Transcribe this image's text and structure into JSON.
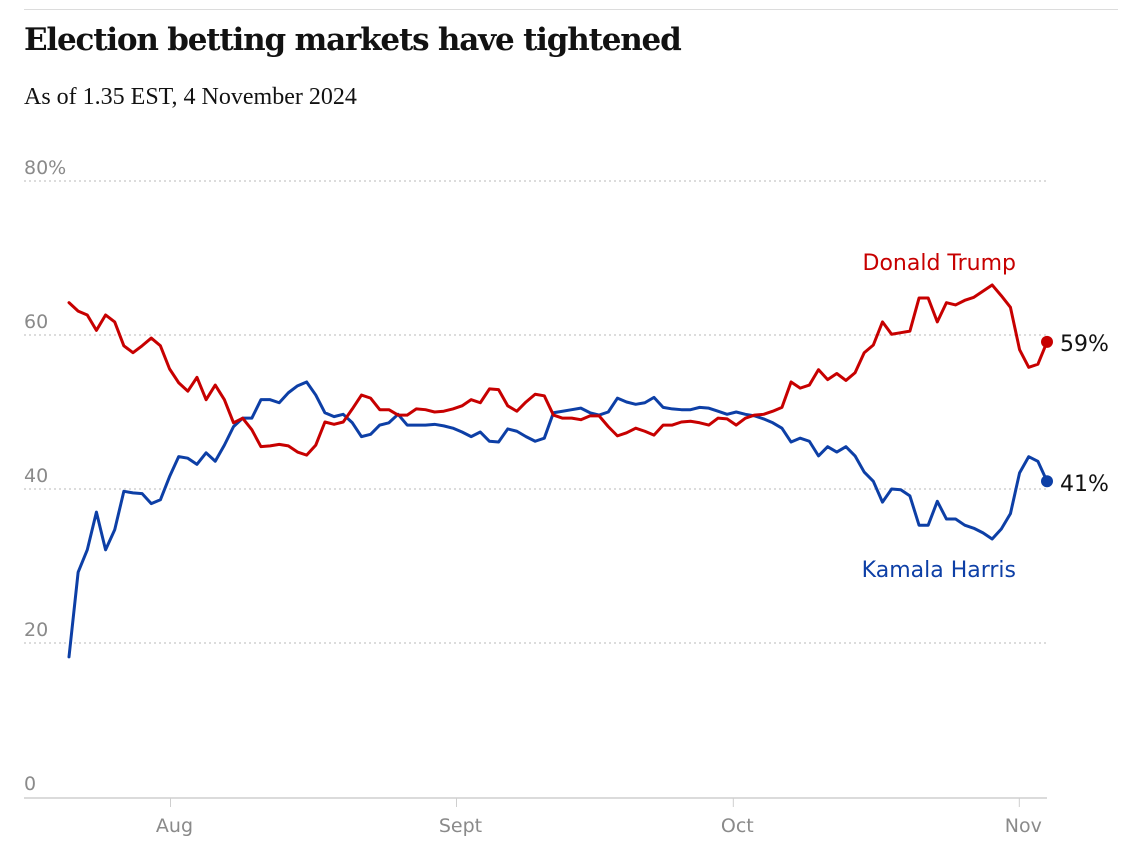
{
  "chart_data": {
    "type": "line",
    "title": "Election betting markets have tightened",
    "subtitle": "As of 1.35 EST, 4 November 2024",
    "xlabel": "",
    "ylabel": "",
    "x_range": [
      "2024-07-21",
      "2024-11-04"
    ],
    "x_ticks": [
      {
        "date": "2024-08-01",
        "label": "Aug"
      },
      {
        "date": "2024-09-01",
        "label": "Sept"
      },
      {
        "date": "2024-10-01",
        "label": "Oct"
      },
      {
        "date": "2024-11-01",
        "label": "Nov"
      }
    ],
    "ylim": [
      0,
      80
    ],
    "y_ticks": [
      {
        "value": 0,
        "label": "0"
      },
      {
        "value": 20,
        "label": "20"
      },
      {
        "value": 40,
        "label": "40"
      },
      {
        "value": 60,
        "label": "60"
      },
      {
        "value": 80,
        "label": "80%"
      }
    ],
    "grid": "horizontal dotted",
    "series": [
      {
        "name": "Donald Trump",
        "color": "#c70000",
        "end_label": "59%",
        "values": [
          64.2,
          63.1,
          62.6,
          60.6,
          62.6,
          61.7,
          58.6,
          57.7,
          58.6,
          59.6,
          58.6,
          55.6,
          53.8,
          52.7,
          54.5,
          51.6,
          53.5,
          51.6,
          48.6,
          49.2,
          47.7,
          45.5,
          45.6,
          45.8,
          45.6,
          44.8,
          44.4,
          45.7,
          48.7,
          48.4,
          48.7,
          50.4,
          52.2,
          51.8,
          50.3,
          50.3,
          49.6,
          49.6,
          50.4,
          50.3,
          50.0,
          50.1,
          50.4,
          50.8,
          51.6,
          51.2,
          53.0,
          52.9,
          50.8,
          50.1,
          51.3,
          52.3,
          52.1,
          49.6,
          49.2,
          49.2,
          49.0,
          49.5,
          49.5,
          48.1,
          46.9,
          47.3,
          47.9,
          47.5,
          47.0,
          48.3,
          48.3,
          48.7,
          48.8,
          48.6,
          48.3,
          49.2,
          49.1,
          48.3,
          49.2,
          49.6,
          49.7,
          50.1,
          50.6,
          53.9,
          53.1,
          53.5,
          55.5,
          54.2,
          55.0,
          54.1,
          55.1,
          57.7,
          58.7,
          61.7,
          60.1,
          60.3,
          60.5,
          64.8,
          64.8,
          61.7,
          64.2,
          63.9,
          64.5,
          64.9,
          65.7,
          66.5,
          65.1,
          63.6,
          58.1,
          55.8,
          56.2,
          59.1
        ]
      },
      {
        "name": "Kamala Harris",
        "color": "#0d3fa6",
        "end_label": "41%",
        "values": [
          18.2,
          29.2,
          32.1,
          37.0,
          32.1,
          34.7,
          39.7,
          39.5,
          39.4,
          38.1,
          38.6,
          41.6,
          44.2,
          44.0,
          43.2,
          44.7,
          43.6,
          45.7,
          48.1,
          49.2,
          49.2,
          51.6,
          51.6,
          51.2,
          52.5,
          53.4,
          53.9,
          52.2,
          49.9,
          49.4,
          49.7,
          48.6,
          46.8,
          47.1,
          48.3,
          48.6,
          49.7,
          48.3,
          48.3,
          48.3,
          48.4,
          48.2,
          47.9,
          47.4,
          46.8,
          47.4,
          46.2,
          46.1,
          47.8,
          47.5,
          46.8,
          46.2,
          46.6,
          49.9,
          50.1,
          50.3,
          50.5,
          49.9,
          49.6,
          50.0,
          51.8,
          51.3,
          51.0,
          51.2,
          51.9,
          50.6,
          50.4,
          50.3,
          50.3,
          50.6,
          50.5,
          50.1,
          49.7,
          50.0,
          49.7,
          49.5,
          49.1,
          48.6,
          47.9,
          46.1,
          46.6,
          46.2,
          44.3,
          45.5,
          44.8,
          45.5,
          44.3,
          42.2,
          41.0,
          38.3,
          40.0,
          39.9,
          39.1,
          35.3,
          35.3,
          38.4,
          36.1,
          36.1,
          35.3,
          34.9,
          34.3,
          33.5,
          34.8,
          36.8,
          42.1,
          44.2,
          43.6,
          41.0
        ]
      }
    ]
  }
}
